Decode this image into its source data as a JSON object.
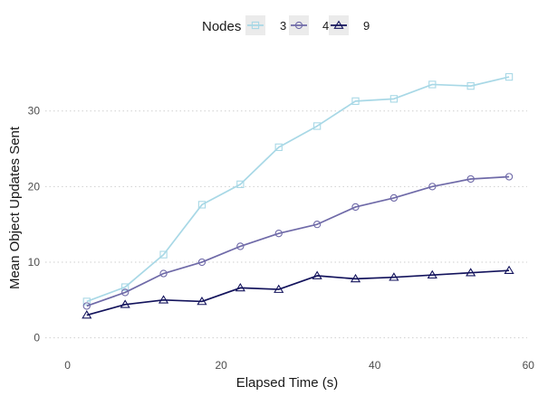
{
  "chart_data": {
    "type": "line",
    "xlabel": "Elapsed Time (s)",
    "ylabel": "Mean Object Updates Sent",
    "xlim": [
      -2.9,
      61.5
    ],
    "ylim": [
      -2.2,
      37.5
    ],
    "xticks": [
      0,
      20,
      40,
      60
    ],
    "yticks": [
      0,
      10,
      20,
      30
    ],
    "grid": "horizontal-dotted",
    "legend": {
      "title": "Nodes",
      "position": "top"
    },
    "x": [
      2.5,
      7.5,
      12.5,
      17.5,
      22.5,
      27.5,
      32.5,
      37.5,
      42.5,
      47.5,
      52.5,
      57.5
    ],
    "series": [
      {
        "name": "3",
        "marker": "square",
        "color": "#a8d8e6",
        "values": [
          4.8,
          6.7,
          11.0,
          17.6,
          20.3,
          25.2,
          28.0,
          31.3,
          31.6,
          33.5,
          33.3,
          34.5
        ]
      },
      {
        "name": "4",
        "marker": "circle",
        "color": "#6f6aa8",
        "values": [
          4.2,
          6.0,
          8.5,
          10.0,
          12.1,
          13.8,
          15.0,
          17.3,
          18.5,
          20.0,
          21.0,
          21.3
        ]
      },
      {
        "name": "9",
        "marker": "triangle",
        "color": "#13135c",
        "values": [
          3.0,
          4.4,
          5.0,
          4.8,
          6.6,
          6.4,
          8.2,
          7.8,
          8.0,
          8.3,
          8.6,
          8.9
        ]
      }
    ]
  }
}
